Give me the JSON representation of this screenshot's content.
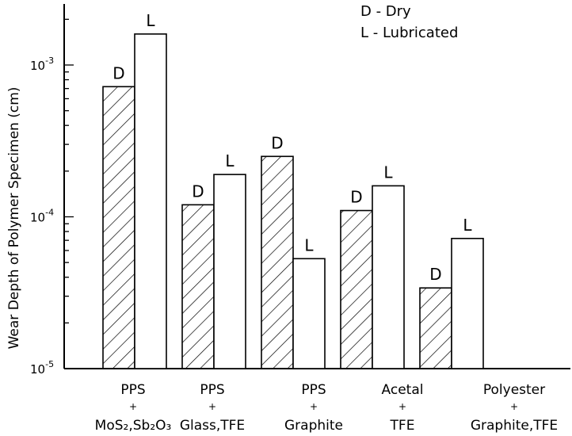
{
  "chart_data": {
    "type": "bar",
    "scale": "log",
    "ylabel": "Wear Depth of Polymer Specimen (cm)",
    "ylim": [
      1e-05,
      0.003
    ],
    "yticks": [
      {
        "value": 1e-05,
        "base": "10",
        "exp": "-5"
      },
      {
        "value": 0.0001,
        "base": "10",
        "exp": "-4"
      },
      {
        "value": 0.001,
        "base": "10",
        "exp": "-3"
      }
    ],
    "grid": false,
    "legend": {
      "placement": "top-right",
      "entries": [
        "D - Dry",
        "L - Lubricated"
      ]
    },
    "categories": [
      {
        "line1": "PPS",
        "line2": "+",
        "line3": "MoS₂,Sb₂O₃"
      },
      {
        "line1": "PPS",
        "line2": "+",
        "line3": "Glass,TFE"
      },
      {
        "line1": "PPS",
        "line2": "+",
        "line3": "Graphite"
      },
      {
        "line1": "Acetal",
        "line2": "+",
        "line3": "TFE"
      },
      {
        "line1": "Polyester",
        "line2": "+",
        "line3": "Graphite,TFE"
      }
    ],
    "series": [
      {
        "name": "Dry",
        "bar_label": "D",
        "fill": "hatched",
        "values": [
          0.00072,
          0.00012,
          0.00025,
          0.00011,
          3.4e-05
        ]
      },
      {
        "name": "Lubricated",
        "bar_label": "L",
        "fill": "white",
        "values": [
          0.0016,
          0.00019,
          5.3e-05,
          0.00016,
          7.2e-05
        ]
      }
    ]
  }
}
